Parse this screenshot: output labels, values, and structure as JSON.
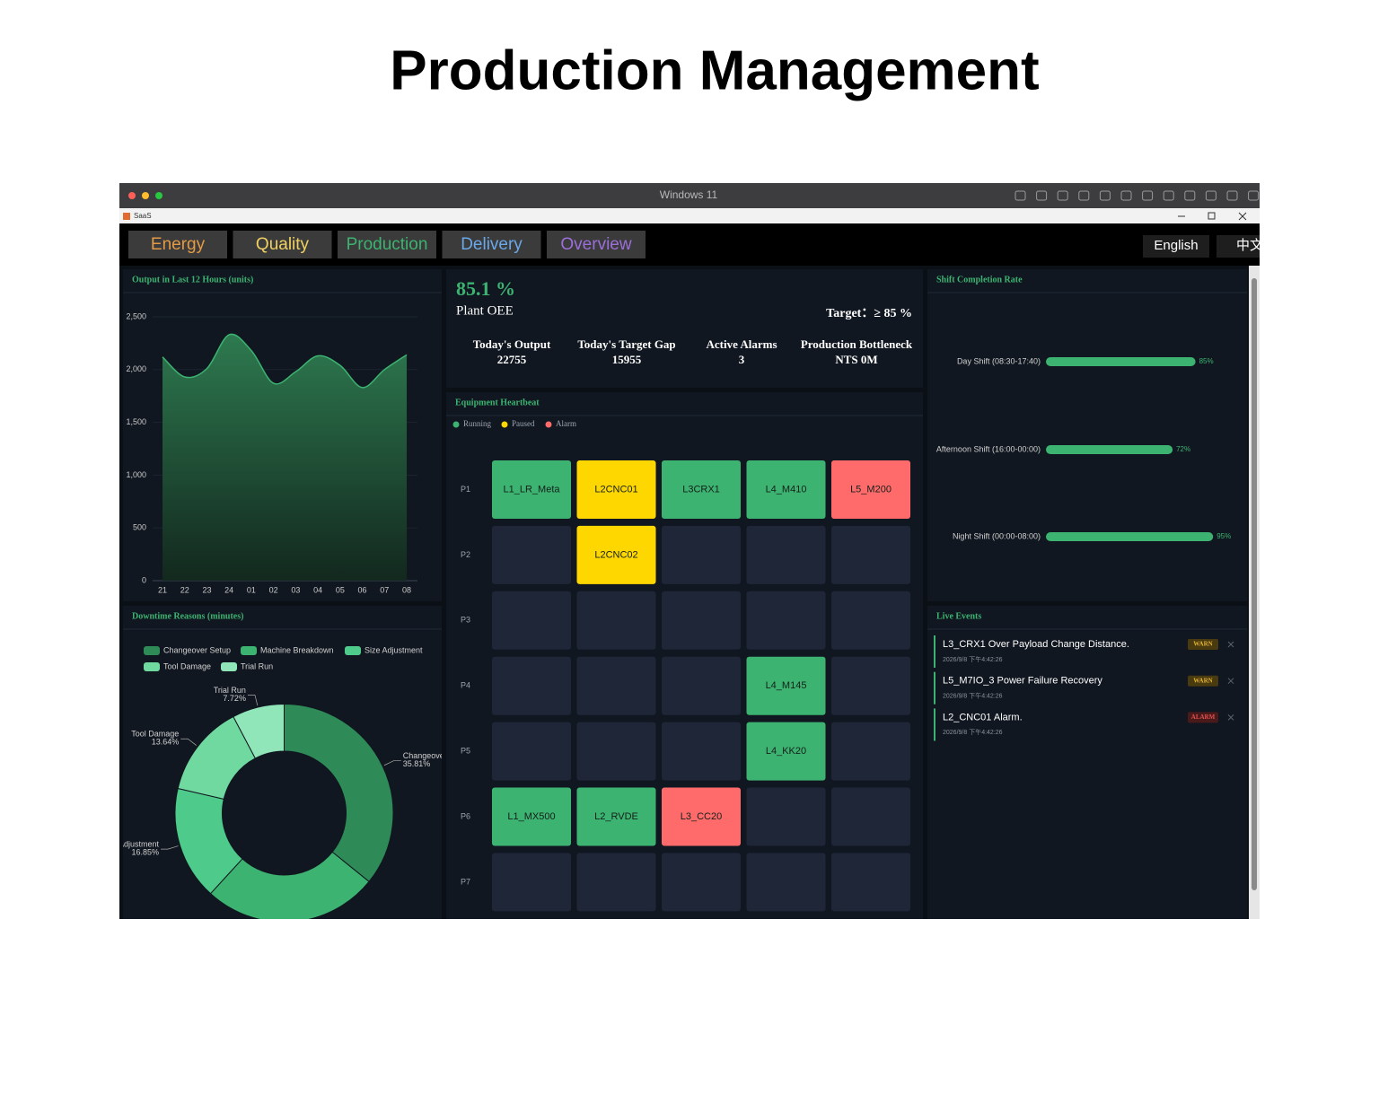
{
  "page_title": "Production Management",
  "window": {
    "title": "Windows 11",
    "app_name": "SaaS"
  },
  "nav": {
    "tabs": [
      {
        "label": "Energy",
        "color": "#e39a45"
      },
      {
        "label": "Quality",
        "color": "#f0d060"
      },
      {
        "label": "Production",
        "color": "#3cb371"
      },
      {
        "label": "Delivery",
        "color": "#6aa8e8"
      },
      {
        "label": "Overview",
        "color": "#9b6fd8"
      }
    ],
    "languages": [
      "English",
      "中文"
    ]
  },
  "kpi": {
    "oee": "85.1 %",
    "oee_label": "Plant OEE",
    "target": "Target：≥ 85 %",
    "stats": [
      {
        "label": "Today's Output",
        "value": "22755"
      },
      {
        "label": "Today's Target Gap",
        "value": "15955"
      },
      {
        "label": "Active Alarms",
        "value": "3"
      },
      {
        "label": "Production Bottleneck",
        "value": "NTS 0M"
      }
    ]
  },
  "heartbeat": {
    "title": "Equipment Heartbeat",
    "legend": [
      {
        "name": "Running",
        "color": "#3cb371"
      },
      {
        "name": "Paused",
        "color": "#ffd700"
      },
      {
        "name": "Alarm",
        "color": "#ff6b6b"
      }
    ],
    "rows": [
      {
        "label": "P1",
        "cells": [
          {
            "name": "L1_LR_Meta",
            "status": "Running"
          },
          {
            "name": "L2CNC01",
            "status": "Paused"
          },
          {
            "name": "L3CRX1",
            "status": "Running"
          },
          {
            "name": "L4_M410",
            "status": "Running"
          },
          {
            "name": "L5_M200",
            "status": "Alarm"
          }
        ]
      },
      {
        "label": "P2",
        "cells": [
          null,
          {
            "name": "L2CNC02",
            "status": "Paused"
          },
          null,
          null,
          null
        ]
      },
      {
        "label": "P3",
        "cells": [
          null,
          null,
          null,
          null,
          null
        ]
      },
      {
        "label": "P4",
        "cells": [
          null,
          null,
          null,
          {
            "name": "L4_M145",
            "status": "Running"
          },
          null
        ]
      },
      {
        "label": "P5",
        "cells": [
          null,
          null,
          null,
          {
            "name": "L4_KK20",
            "status": "Running"
          },
          null
        ]
      },
      {
        "label": "P6",
        "cells": [
          {
            "name": "L1_MX500",
            "status": "Running"
          },
          {
            "name": "L2_RVDE",
            "status": "Running"
          },
          {
            "name": "L3_CC20",
            "status": "Alarm"
          },
          null,
          null
        ]
      },
      {
        "label": "P7",
        "cells": [
          null,
          null,
          null,
          null,
          null
        ]
      }
    ]
  },
  "events": {
    "title": "Live Events",
    "items": [
      {
        "text": "L3_CRX1 Over Payload Change Distance.",
        "time": "2026/9/8 下午4:42:26",
        "level": "WARN",
        "color": "#e0b030",
        "bg": "#4a3a10"
      },
      {
        "text": "L5_M7IO_3 Power Failure Recovery",
        "time": "2026/9/8 下午4:42:26",
        "level": "WARN",
        "color": "#e0b030",
        "bg": "#4a3a10"
      },
      {
        "text": "L2_CNC01 Alarm.",
        "time": "2026/9/8 下午4:42:26",
        "level": "ALARM",
        "color": "#e05050",
        "bg": "#4a1a1a"
      }
    ]
  },
  "chart_data": [
    {
      "type": "area",
      "title": "Output in Last 12 Hours (units)",
      "categories": [
        "21",
        "22",
        "23",
        "24",
        "01",
        "02",
        "03",
        "04",
        "05",
        "06",
        "07",
        "08"
      ],
      "values": [
        2120,
        1930,
        2010,
        2330,
        2180,
        1870,
        1980,
        2130,
        2040,
        1830,
        2000,
        2140
      ],
      "color": "#3cb371",
      "ylim": [
        0,
        2500
      ],
      "yticks": [
        0,
        500,
        {
          "value": 1000,
          "label": "1,000"
        },
        {
          "value": 1500,
          "label": "1,500"
        },
        {
          "value": 2000,
          "label": "2,000"
        },
        {
          "value": 2500,
          "label": "2,500"
        }
      ],
      "grid": true
    },
    {
      "type": "pie",
      "title": "Downtime Reasons (minutes)",
      "categories": [
        "Changeover Setup",
        "Machine Breakdown",
        "Size Adjustment",
        "Tool Damage",
        "Trial Run"
      ],
      "values": [
        35.81,
        25.98,
        16.85,
        13.64,
        7.72
      ],
      "value_labels": [
        "35.81%",
        null,
        "16.85%",
        "13.64%",
        "7.72%"
      ],
      "colors": [
        "#2e8b57",
        "#3cb371",
        "#4ecb8a",
        "#6fd9a0",
        "#90e6b8"
      ]
    },
    {
      "type": "bar",
      "orientation": "horizontal",
      "title": "Shift Completion Rate",
      "categories": [
        "Day Shift (08:30-17:40)",
        "Afternoon Shift (16:00-00:00)",
        "Night Shift (00:00-08:00)"
      ],
      "values": [
        85,
        72,
        95
      ],
      "value_labels": [
        "85%",
        "72%",
        "95%"
      ],
      "color": "#3cb371",
      "xlim": [
        0,
        100
      ]
    }
  ]
}
